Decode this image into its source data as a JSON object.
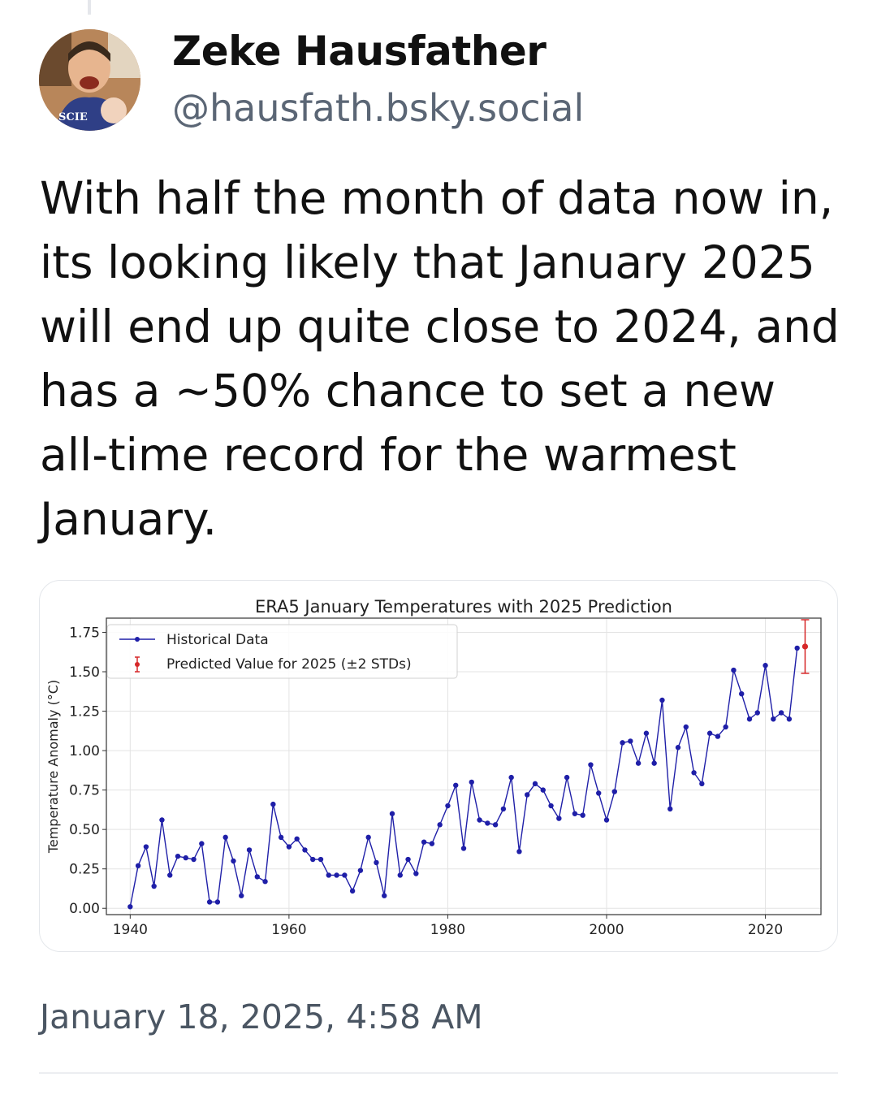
{
  "post": {
    "author": {
      "display_name": "Zeke Hausfather",
      "handle": "@hausfath.bsky.social",
      "avatar_shirt_text": "SCIE"
    },
    "text": "With half the month of data now in, its looking likely that January 2025 will end up quite close to 2024, and has a ~50% chance to set a new all-time record for the warmest January.",
    "timestamp": "January 18, 2025, 4:58 AM"
  },
  "colors": {
    "historical_series": "#1f1fa8",
    "prediction": "#d62728",
    "text_secondary": "#5b6675"
  },
  "chart_data": {
    "type": "line",
    "title": "ERA5 January Temperatures with 2025 Prediction",
    "xlabel": "",
    "ylabel": "Temperature Anomaly (°C)",
    "xlim": [
      1937,
      2027
    ],
    "ylim": [
      -0.04,
      1.84
    ],
    "x_ticks": [
      1940,
      1960,
      1980,
      2000,
      2020
    ],
    "x_tick_labels": [
      "1940",
      "1960",
      "1980",
      "2000",
      "2020"
    ],
    "y_ticks": [
      0.0,
      0.25,
      0.5,
      0.75,
      1.0,
      1.25,
      1.5,
      1.75
    ],
    "y_tick_labels": [
      "0.00",
      "0.25",
      "0.50",
      "0.75",
      "1.00",
      "1.25",
      "1.50",
      "1.75"
    ],
    "grid": true,
    "legend_position": "top-left",
    "series": [
      {
        "name": "Historical Data",
        "x": [
          1940,
          1941,
          1942,
          1943,
          1944,
          1945,
          1946,
          1947,
          1948,
          1949,
          1950,
          1951,
          1952,
          1953,
          1954,
          1955,
          1956,
          1957,
          1958,
          1959,
          1960,
          1961,
          1962,
          1963,
          1964,
          1965,
          1966,
          1967,
          1968,
          1969,
          1970,
          1971,
          1972,
          1973,
          1974,
          1975,
          1976,
          1977,
          1978,
          1979,
          1980,
          1981,
          1982,
          1983,
          1984,
          1985,
          1986,
          1987,
          1988,
          1989,
          1990,
          1991,
          1992,
          1993,
          1994,
          1995,
          1996,
          1997,
          1998,
          1999,
          2000,
          2001,
          2002,
          2003,
          2004,
          2005,
          2006,
          2007,
          2008,
          2009,
          2010,
          2011,
          2012,
          2013,
          2014,
          2015,
          2016,
          2017,
          2018,
          2019,
          2020,
          2021,
          2022,
          2023,
          2024
        ],
        "values": [
          0.01,
          0.27,
          0.39,
          0.14,
          0.56,
          0.21,
          0.33,
          0.32,
          0.31,
          0.41,
          0.04,
          0.04,
          0.45,
          0.3,
          0.08,
          0.37,
          0.2,
          0.17,
          0.66,
          0.45,
          0.39,
          0.44,
          0.37,
          0.31,
          0.31,
          0.21,
          0.21,
          0.21,
          0.11,
          0.24,
          0.45,
          0.29,
          0.08,
          0.6,
          0.21,
          0.31,
          0.22,
          0.42,
          0.41,
          0.53,
          0.65,
          0.78,
          0.38,
          0.8,
          0.56,
          0.54,
          0.53,
          0.63,
          0.83,
          0.36,
          0.72,
          0.79,
          0.75,
          0.65,
          0.57,
          0.83,
          0.6,
          0.59,
          0.91,
          0.73,
          0.56,
          0.74,
          1.05,
          1.06,
          0.92,
          1.11,
          0.92,
          1.32,
          0.63,
          1.02,
          1.15,
          0.86,
          0.79,
          1.11,
          1.09,
          1.15,
          1.51,
          1.36,
          1.2,
          1.24,
          1.54,
          1.2,
          1.24,
          1.2,
          1.65
        ]
      },
      {
        "name": "Predicted Value for 2025 (±2 STDs)",
        "x": [
          2025
        ],
        "values": [
          1.66
        ],
        "error_low": [
          1.49
        ],
        "error_high": [
          1.83
        ]
      }
    ]
  }
}
